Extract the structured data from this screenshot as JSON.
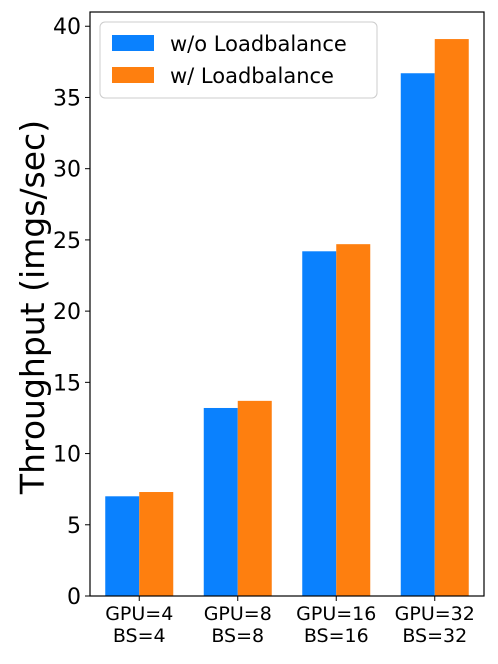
{
  "chart_data": {
    "type": "bar",
    "title": "",
    "xlabel": "",
    "ylabel": "Throughput (imgs/sec)",
    "ylim": [
      0,
      41
    ],
    "yticks": [
      0,
      5,
      10,
      15,
      20,
      25,
      30,
      35,
      40
    ],
    "categories": [
      [
        "GPU=4",
        "BS=4"
      ],
      [
        "GPU=8",
        "BS=8"
      ],
      [
        "GPU=16",
        "BS=16"
      ],
      [
        "GPU=32",
        "BS=32"
      ]
    ],
    "series": [
      {
        "name": "w/o Loadbalance",
        "color": "#0a81fe",
        "values": [
          7.0,
          13.2,
          24.2,
          36.7
        ]
      },
      {
        "name": "w/ Loadbalance",
        "color": "#fe7f0f",
        "values": [
          7.3,
          13.7,
          24.7,
          39.1
        ]
      }
    ],
    "legend_position": "top-left",
    "grid": false
  }
}
